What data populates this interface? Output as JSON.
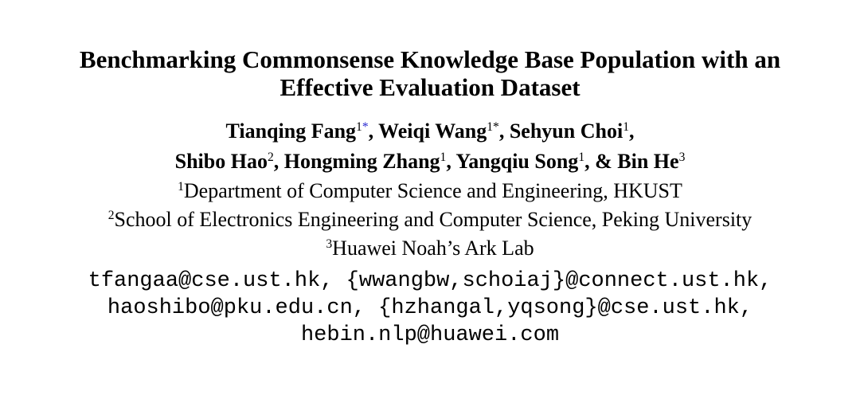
{
  "title": {
    "line1": "Benchmarking Commonsense Knowledge Base Population with an",
    "line2": "Effective Evaluation Dataset"
  },
  "authors": [
    {
      "name": "Tianqing Fang",
      "mark": "1",
      "star": "*"
    },
    {
      "name": "Weiqi Wang",
      "mark": "1",
      "star": "*"
    },
    {
      "name": "Sehyun Choi",
      "mark": "1"
    },
    {
      "name": "Shibo Hao",
      "mark": "2"
    },
    {
      "name": "Hongming Zhang",
      "mark": "1"
    },
    {
      "name": "Yangqiu Song",
      "mark": "1"
    },
    {
      "name": "& Bin He",
      "mark": "3"
    }
  ],
  "affiliations": [
    {
      "mark": "1",
      "text": "Department of Computer Science and Engineering, HKUST"
    },
    {
      "mark": "2",
      "text": "School of Electronics Engineering and Computer Science, Peking University"
    },
    {
      "mark": "3",
      "text": "Huawei Noah’s Ark Lab"
    }
  ],
  "emails": [
    "tfangaa@cse.ust.hk, {wwangbw,schoiaj}@connect.ust.hk,",
    "haoshibo@pku.edu.cn, {hzhangal,yqsong}@cse.ust.hk,",
    "hebin.nlp@huawei.com"
  ]
}
